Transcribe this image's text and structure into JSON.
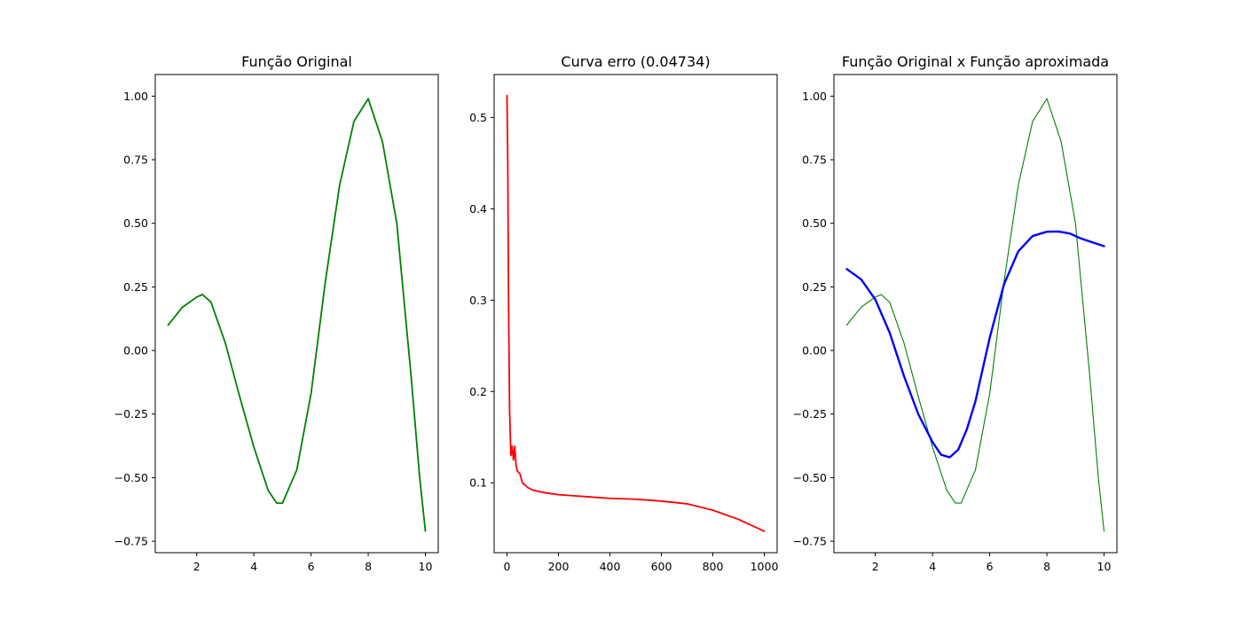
{
  "chart_data": [
    {
      "type": "line",
      "title": "Função Original",
      "xlabel": "",
      "ylabel": "",
      "xlim": [
        0.55,
        10.45
      ],
      "ylim": [
        -0.795,
        1.085
      ],
      "xticks": [
        2,
        4,
        6,
        8,
        10
      ],
      "xtick_labels": [
        "2",
        "4",
        "6",
        "8",
        "10"
      ],
      "yticks": [
        -0.75,
        -0.5,
        -0.25,
        0.0,
        0.25,
        0.5,
        0.75,
        1.0
      ],
      "ytick_labels": [
        "−0.75",
        "−0.50",
        "−0.25",
        "0.00",
        "0.25",
        "0.50",
        "0.75",
        "1.00"
      ],
      "grid": false,
      "series": [
        {
          "color": "#008000",
          "line_width": 1.8,
          "x": [
            1.0,
            1.5,
            2.0,
            2.2,
            2.5,
            3.0,
            3.5,
            4.0,
            4.5,
            4.8,
            5.0,
            5.5,
            6.0,
            6.5,
            7.0,
            7.5,
            8.0,
            8.5,
            9.0,
            9.5,
            9.8,
            10.0
          ],
          "y": [
            0.1,
            0.17,
            0.21,
            0.22,
            0.19,
            0.03,
            -0.18,
            -0.38,
            -0.55,
            -0.6,
            -0.6,
            -0.47,
            -0.17,
            0.27,
            0.65,
            0.9,
            0.99,
            0.82,
            0.5,
            -0.1,
            -0.5,
            -0.71
          ]
        }
      ]
    },
    {
      "type": "line",
      "title": "Curva erro (0.04734)",
      "xlabel": "",
      "ylabel": "",
      "xlim": [
        -50,
        1050
      ],
      "ylim": [
        0.0235,
        0.547
      ],
      "xticks": [
        0,
        200,
        400,
        600,
        800,
        1000
      ],
      "xtick_labels": [
        "0",
        "200",
        "400",
        "600",
        "800",
        "1000"
      ],
      "yticks": [
        0.1,
        0.2,
        0.3,
        0.4,
        0.5
      ],
      "ytick_labels": [
        "0.1",
        "0.2",
        "0.3",
        "0.4",
        "0.5"
      ],
      "grid": false,
      "series": [
        {
          "color": "#ff0000",
          "line_width": 1.8,
          "x": [
            0,
            3,
            6,
            10,
            15,
            20,
            25,
            30,
            35,
            40,
            50,
            60,
            80,
            100,
            150,
            200,
            300,
            400,
            500,
            600,
            700,
            800,
            900,
            1000
          ],
          "y": [
            0.524,
            0.45,
            0.3,
            0.18,
            0.13,
            0.14,
            0.125,
            0.14,
            0.12,
            0.113,
            0.11,
            0.1,
            0.095,
            0.092,
            0.089,
            0.087,
            0.085,
            0.083,
            0.082,
            0.08,
            0.077,
            0.07,
            0.06,
            0.047
          ]
        }
      ]
    },
    {
      "type": "line",
      "title": "Função Original x Função aproximada",
      "xlabel": "",
      "ylabel": "",
      "xlim": [
        0.55,
        10.45
      ],
      "ylim": [
        -0.795,
        1.085
      ],
      "xticks": [
        2,
        4,
        6,
        8,
        10
      ],
      "xtick_labels": [
        "2",
        "4",
        "6",
        "8",
        "10"
      ],
      "yticks": [
        -0.75,
        -0.5,
        -0.25,
        0.0,
        0.25,
        0.5,
        0.75,
        1.0
      ],
      "ytick_labels": [
        "−0.75",
        "−0.50",
        "−0.25",
        "0.00",
        "0.25",
        "0.50",
        "0.75",
        "1.00"
      ],
      "grid": false,
      "series": [
        {
          "color": "#008000",
          "line_width": 1.1,
          "x": [
            1.0,
            1.5,
            2.0,
            2.2,
            2.5,
            3.0,
            3.5,
            4.0,
            4.5,
            4.8,
            5.0,
            5.5,
            6.0,
            6.5,
            7.0,
            7.5,
            8.0,
            8.5,
            9.0,
            9.5,
            9.8,
            10.0
          ],
          "y": [
            0.1,
            0.17,
            0.21,
            0.22,
            0.19,
            0.03,
            -0.18,
            -0.38,
            -0.55,
            -0.6,
            -0.6,
            -0.47,
            -0.17,
            0.27,
            0.65,
            0.9,
            0.99,
            0.82,
            0.5,
            -0.1,
            -0.5,
            -0.71
          ]
        },
        {
          "color": "#0000ff",
          "line_width": 2.4,
          "x": [
            1.0,
            1.5,
            2.0,
            2.5,
            3.0,
            3.5,
            4.0,
            4.3,
            4.6,
            4.9,
            5.2,
            5.5,
            6.0,
            6.5,
            7.0,
            7.5,
            8.0,
            8.4,
            8.8,
            9.2,
            9.6,
            10.0
          ],
          "y": [
            0.32,
            0.28,
            0.2,
            0.07,
            -0.1,
            -0.25,
            -0.36,
            -0.41,
            -0.42,
            -0.39,
            -0.31,
            -0.2,
            0.05,
            0.26,
            0.39,
            0.45,
            0.467,
            0.468,
            0.46,
            0.44,
            0.425,
            0.41
          ]
        }
      ]
    }
  ]
}
